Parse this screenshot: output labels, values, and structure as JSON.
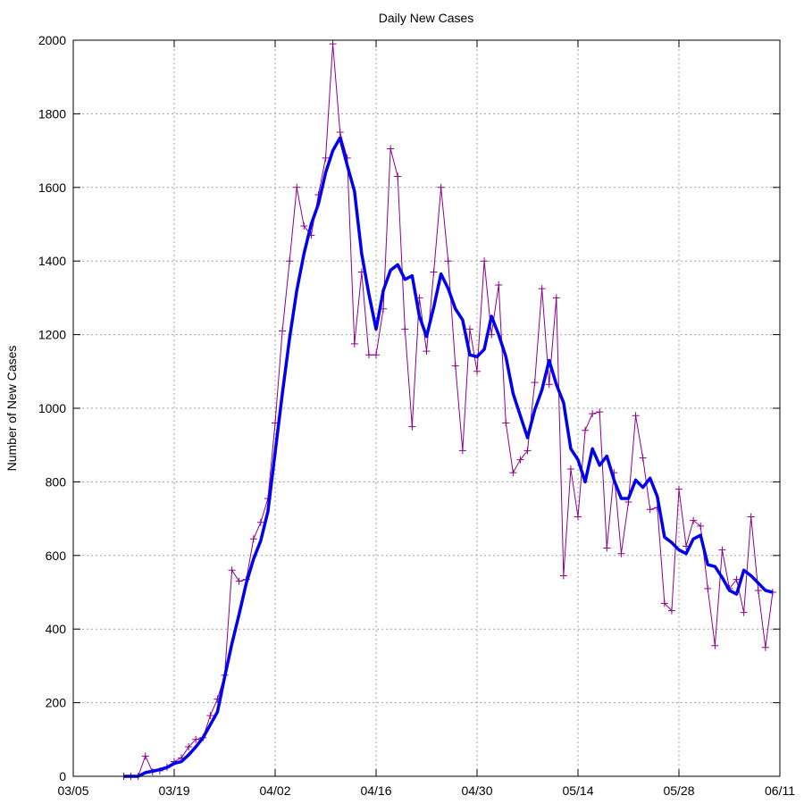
{
  "chart_data": {
    "type": "line",
    "title": "Daily New Cases",
    "xlabel": "",
    "ylabel": "Number of New Cases",
    "x_start_date": "2020-03-05",
    "xlim": [
      0,
      98
    ],
    "ylim": [
      0,
      2000
    ],
    "x_ticks": [
      {
        "day": 0,
        "label": "03/05"
      },
      {
        "day": 14,
        "label": "03/19"
      },
      {
        "day": 28,
        "label": "04/02"
      },
      {
        "day": 42,
        "label": "04/16"
      },
      {
        "day": 56,
        "label": "04/30"
      },
      {
        "day": 70,
        "label": "05/14"
      },
      {
        "day": 84,
        "label": "05/28"
      },
      {
        "day": 98,
        "label": "06/11"
      }
    ],
    "y_ticks": [
      0,
      200,
      400,
      600,
      800,
      1000,
      1200,
      1400,
      1600,
      1800,
      2000
    ],
    "grid": true,
    "colors": {
      "daily": "#8b008b",
      "average": "#0000ee"
    },
    "series": [
      {
        "name": "",
        "style": "line-with-plus-markers",
        "x_start_day": 7,
        "values": [
          0,
          0,
          0,
          55,
          12,
          15,
          25,
          40,
          50,
          80,
          100,
          105,
          165,
          210,
          275,
          560,
          530,
          535,
          645,
          690,
          755,
          960,
          1210,
          1400,
          1600,
          1495,
          1470,
          1580,
          1680,
          1990,
          1750,
          1680,
          1175,
          1370,
          1145,
          1145,
          1270,
          1705,
          1630,
          1215,
          950,
          1300,
          1155,
          1370,
          1600,
          1400,
          1115,
          885,
          1215,
          1100,
          1400,
          1200,
          1335,
          960,
          825,
          860,
          885,
          1070,
          1325,
          1065,
          1300,
          545,
          835,
          705,
          940,
          985,
          990,
          620,
          825,
          605,
          745,
          980,
          865,
          725,
          730,
          470,
          450,
          780,
          625,
          695,
          680,
          510,
          355,
          615,
          510,
          535,
          445,
          705,
          505,
          350,
          500
        ]
      },
      {
        "name": "",
        "style": "thick-line",
        "x_start_day": 7,
        "values": [
          0,
          0,
          0,
          10,
          14,
          18,
          24,
          35,
          40,
          58,
          80,
          105,
          140,
          175,
          270,
          360,
          440,
          525,
          590,
          640,
          720,
          880,
          1040,
          1190,
          1320,
          1420,
          1500,
          1555,
          1640,
          1700,
          1735,
          1660,
          1590,
          1420,
          1310,
          1215,
          1320,
          1375,
          1390,
          1350,
          1360,
          1250,
          1195,
          1275,
          1365,
          1325,
          1270,
          1240,
          1145,
          1140,
          1160,
          1250,
          1200,
          1140,
          1040,
          980,
          920,
          995,
          1050,
          1130,
          1065,
          1015,
          890,
          860,
          800,
          890,
          845,
          870,
          805,
          755,
          755,
          805,
          785,
          810,
          760,
          650,
          635,
          615,
          605,
          645,
          655,
          575,
          570,
          540,
          505,
          495,
          560,
          545,
          525,
          505,
          500
        ]
      }
    ]
  }
}
